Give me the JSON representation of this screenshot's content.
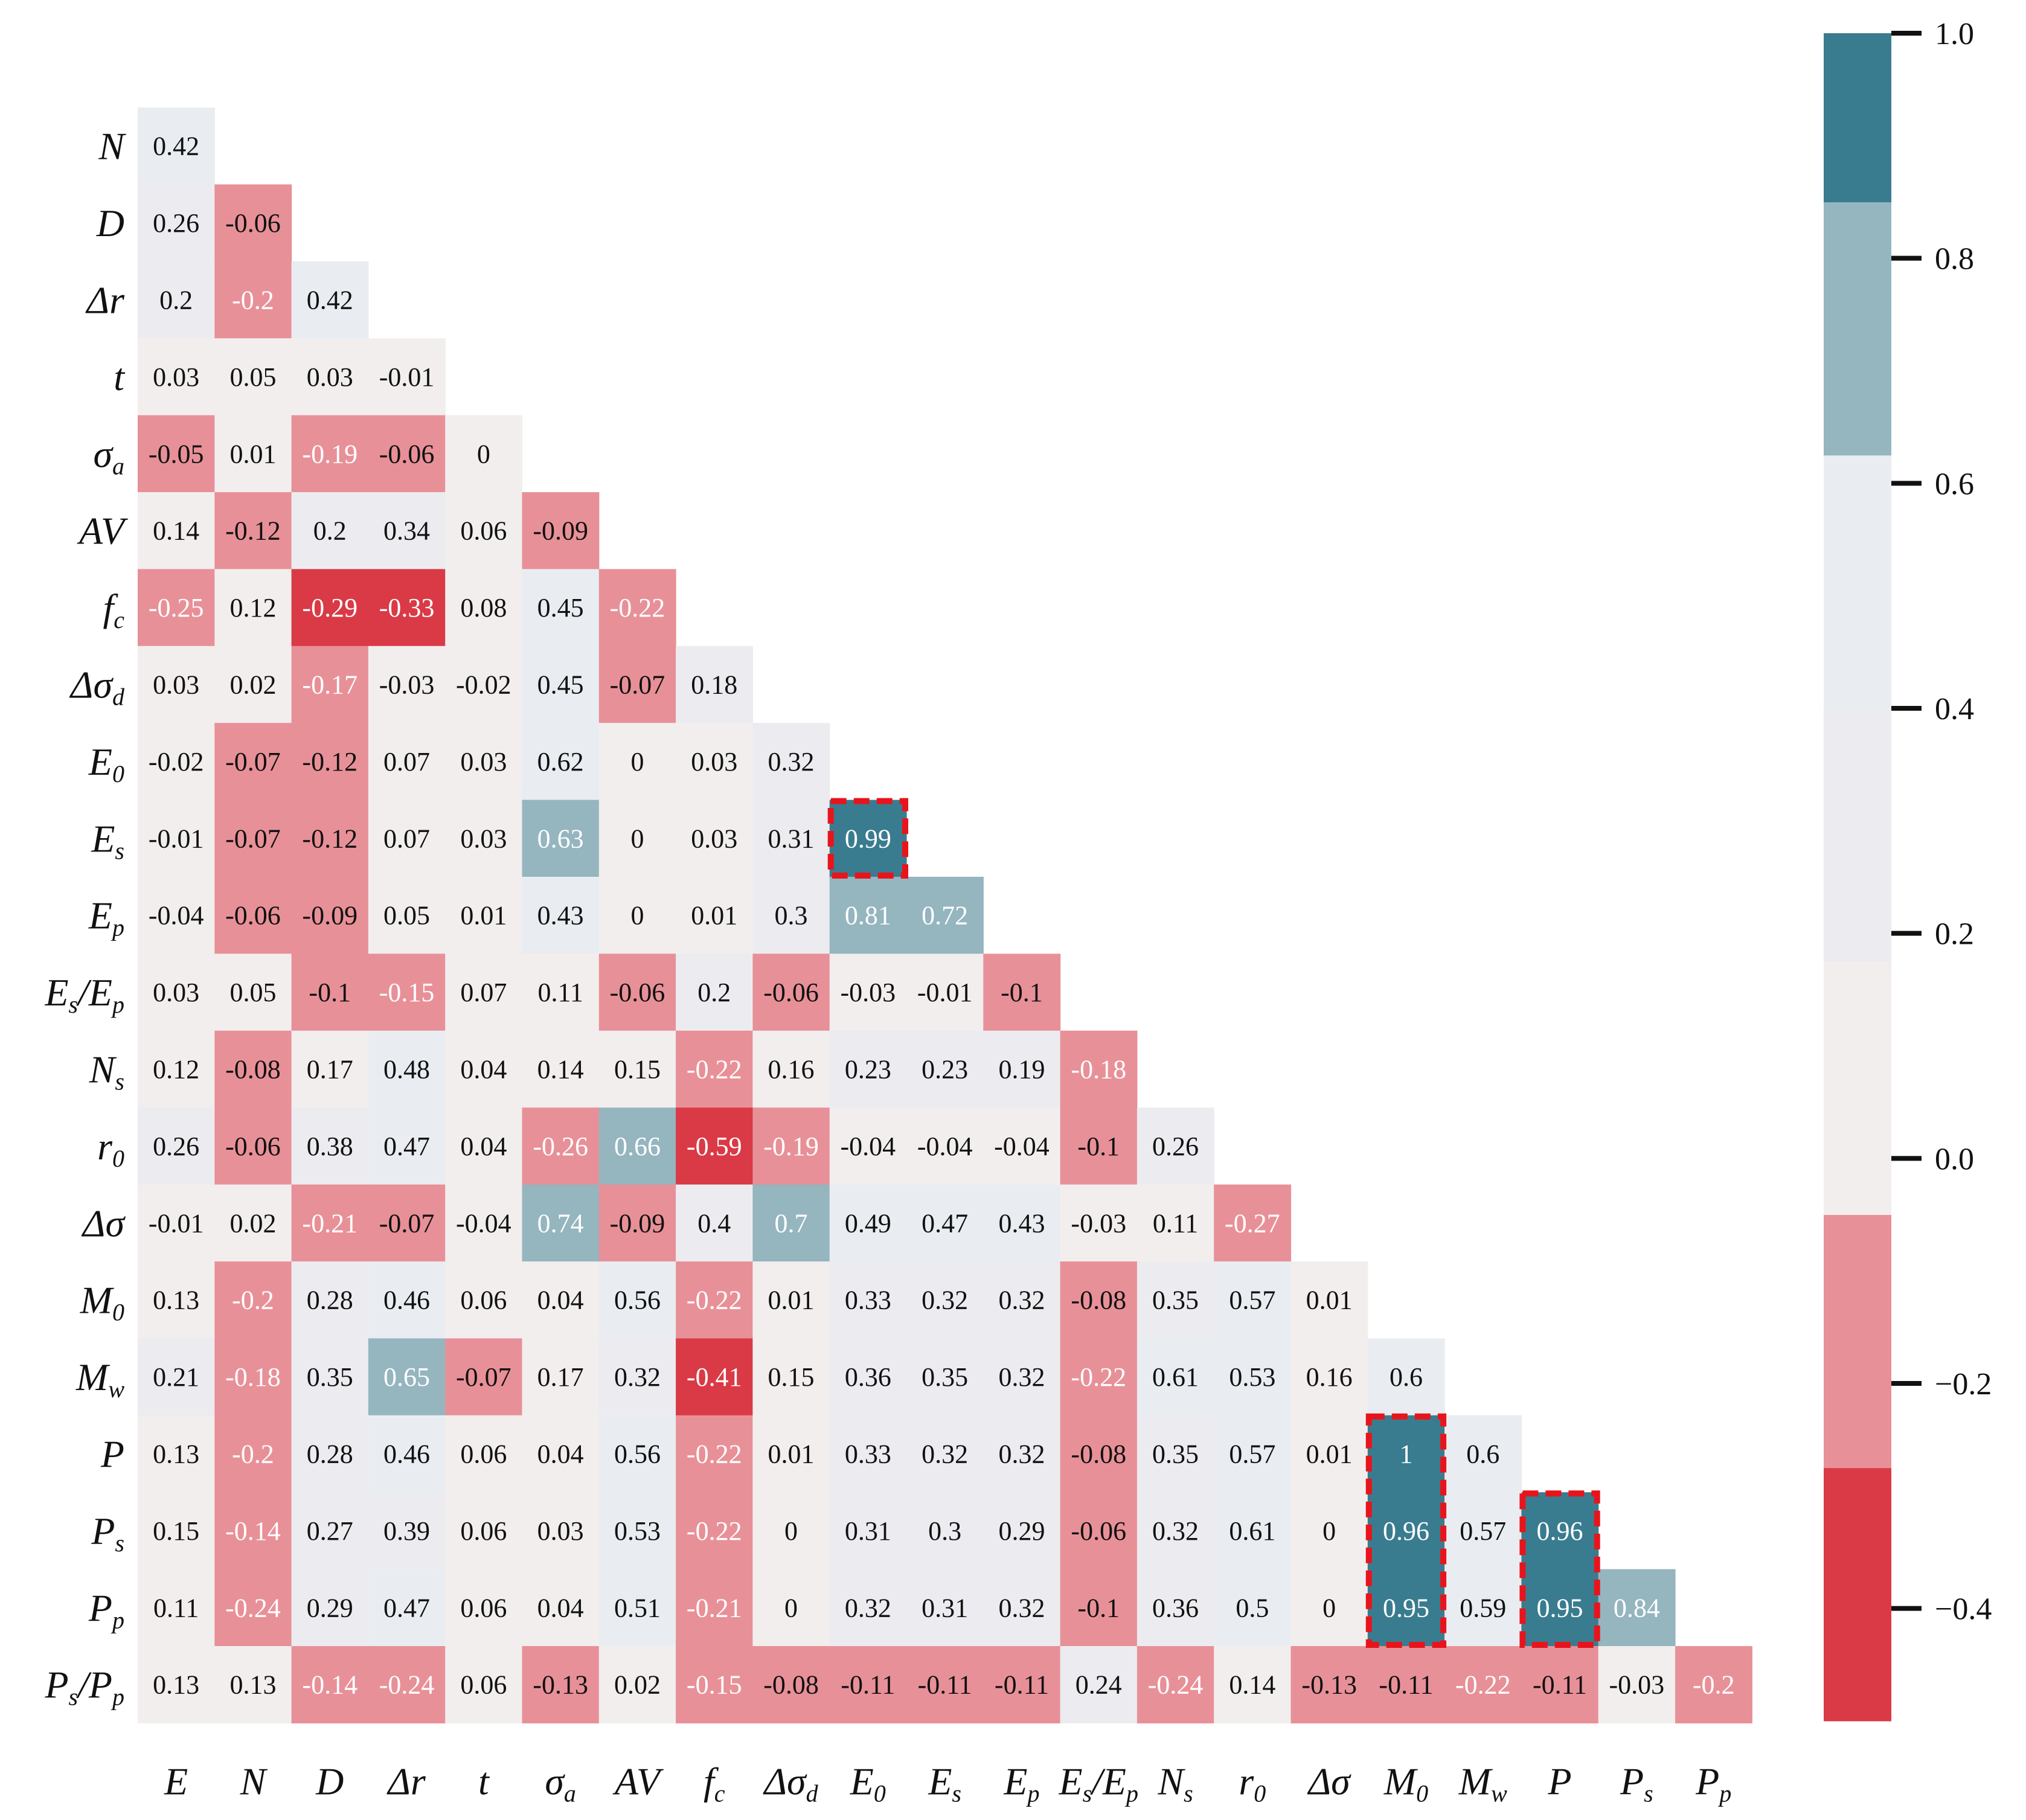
{
  "chart_data": {
    "type": "heatmap",
    "title": "",
    "variables": [
      {
        "base": "E",
        "sub": ""
      },
      {
        "base": "N",
        "sub": ""
      },
      {
        "base": "D",
        "sub": ""
      },
      {
        "base": "Δr",
        "sub": ""
      },
      {
        "base": "t",
        "sub": ""
      },
      {
        "base": "σ",
        "sub": "a"
      },
      {
        "base": "AV",
        "sub": ""
      },
      {
        "base": "f",
        "sub": "c"
      },
      {
        "base": "Δσ",
        "sub": "d"
      },
      {
        "base": "E",
        "sub": "0"
      },
      {
        "base": "E",
        "sub": "s"
      },
      {
        "base": "E",
        "sub": "p"
      },
      {
        "base": "E",
        "sub": "s",
        "base2": "/E",
        "sub2": "p"
      },
      {
        "base": "N",
        "sub": "s"
      },
      {
        "base": "r",
        "sub": "0"
      },
      {
        "base": "Δσ",
        "sub": ""
      },
      {
        "base": "M",
        "sub": "0"
      },
      {
        "base": "M",
        "sub": "w"
      },
      {
        "base": "P",
        "sub": ""
      },
      {
        "base": "P",
        "sub": "s"
      },
      {
        "base": "P",
        "sub": "p"
      },
      {
        "base": "P",
        "sub": "s",
        "base2": "/P",
        "sub2": "p"
      }
    ],
    "rows": [
      [
        "0.42"
      ],
      [
        "0.26",
        "-0.06"
      ],
      [
        "0.2",
        "-0.2",
        "0.42"
      ],
      [
        "0.03",
        "0.05",
        "0.03",
        "-0.01"
      ],
      [
        "-0.05",
        "0.01",
        "-0.19",
        "-0.06",
        "0"
      ],
      [
        "0.14",
        "-0.12",
        "0.2",
        "0.34",
        "0.06",
        "-0.09"
      ],
      [
        "-0.25",
        "0.12",
        "-0.29",
        "-0.33",
        "0.08",
        "0.45",
        "-0.22"
      ],
      [
        "0.03",
        "0.02",
        "-0.17",
        "-0.03",
        "-0.02",
        "0.45",
        "-0.07",
        "0.18"
      ],
      [
        "-0.02",
        "-0.07",
        "-0.12",
        "0.07",
        "0.03",
        "0.62",
        "0",
        "0.03",
        "0.32"
      ],
      [
        "-0.01",
        "-0.07",
        "-0.12",
        "0.07",
        "0.03",
        "0.63",
        "0",
        "0.03",
        "0.31",
        "0.99"
      ],
      [
        "-0.04",
        "-0.06",
        "-0.09",
        "0.05",
        "0.01",
        "0.43",
        "0",
        "0.01",
        "0.3",
        "0.81",
        "0.72"
      ],
      [
        "0.03",
        "0.05",
        "-0.1",
        "-0.15",
        "0.07",
        "0.11",
        "-0.06",
        "0.2",
        "-0.06",
        "-0.03",
        "-0.01",
        "-0.1"
      ],
      [
        "0.12",
        "-0.08",
        "0.17",
        "0.48",
        "0.04",
        "0.14",
        "0.15",
        "-0.22",
        "0.16",
        "0.23",
        "0.23",
        "0.19",
        "-0.18"
      ],
      [
        "0.26",
        "-0.06",
        "0.38",
        "0.47",
        "0.04",
        "-0.26",
        "0.66",
        "-0.59",
        "-0.19",
        "-0.04",
        "-0.04",
        "-0.04",
        "-0.1",
        "0.26"
      ],
      [
        "-0.01",
        "0.02",
        "-0.21",
        "-0.07",
        "-0.04",
        "0.74",
        "-0.09",
        "0.4",
        "0.7",
        "0.49",
        "0.47",
        "0.43",
        "-0.03",
        "0.11",
        "-0.27"
      ],
      [
        "0.13",
        "-0.2",
        "0.28",
        "0.46",
        "0.06",
        "0.04",
        "0.56",
        "-0.22",
        "0.01",
        "0.33",
        "0.32",
        "0.32",
        "-0.08",
        "0.35",
        "0.57",
        "0.01"
      ],
      [
        "0.21",
        "-0.18",
        "0.35",
        "0.65",
        "-0.07",
        "0.17",
        "0.32",
        "-0.41",
        "0.15",
        "0.36",
        "0.35",
        "0.32",
        "-0.22",
        "0.61",
        "0.53",
        "0.16",
        "0.6"
      ],
      [
        "0.13",
        "-0.2",
        "0.28",
        "0.46",
        "0.06",
        "0.04",
        "0.56",
        "-0.22",
        "0.01",
        "0.33",
        "0.32",
        "0.32",
        "-0.08",
        "0.35",
        "0.57",
        "0.01",
        "1",
        "0.6"
      ],
      [
        "0.15",
        "-0.14",
        "0.27",
        "0.39",
        "0.06",
        "0.03",
        "0.53",
        "-0.22",
        "0",
        "0.31",
        "0.3",
        "0.29",
        "-0.06",
        "0.32",
        "0.61",
        "0",
        "0.96",
        "0.57",
        "0.96"
      ],
      [
        "0.11",
        "-0.24",
        "0.29",
        "0.47",
        "0.06",
        "0.04",
        "0.51",
        "-0.21",
        "0",
        "0.32",
        "0.31",
        "0.32",
        "-0.1",
        "0.36",
        "0.5",
        "0",
        "0.95",
        "0.59",
        "0.95",
        "0.84"
      ],
      [
        "0.13",
        "0.13",
        "-0.14",
        "-0.24",
        "0.06",
        "-0.13",
        "0.02",
        "-0.15",
        "-0.08",
        "-0.11",
        "-0.11",
        "-0.11",
        "0.24",
        "-0.24",
        "0.14",
        "-0.13",
        "-0.11",
        "-0.22",
        "-0.11",
        "-0.03",
        "-0.2"
      ]
    ],
    "colorbar": {
      "range": [
        -0.5,
        1.0
      ],
      "ticks": [
        "1.0",
        "0.8",
        "0.6",
        "0.4",
        "0.2",
        "0.0",
        "−0.2",
        "−0.4"
      ],
      "tick_values": [
        1.0,
        0.8,
        0.6,
        0.4,
        0.2,
        0.0,
        -0.2,
        -0.4
      ],
      "bands": [
        {
          "from": -0.5,
          "to": -0.275,
          "color": "#d93a46"
        },
        {
          "from": -0.275,
          "to": -0.05,
          "color": "#e89098"
        },
        {
          "from": -0.05,
          "to": 0.175,
          "color": "#f2eeee"
        },
        {
          "from": 0.175,
          "to": 0.4,
          "color": "#ececf0"
        },
        {
          "from": 0.4,
          "to": 0.625,
          "color": "#e9edf1"
        },
        {
          "from": 0.625,
          "to": 0.85,
          "color": "#95b5bf"
        },
        {
          "from": 0.85,
          "to": 1.0,
          "color": "#3a7c8f"
        }
      ]
    },
    "highlights": [
      {
        "col": 9,
        "row_from": 9,
        "row_to": 9
      },
      {
        "col": 16,
        "row_from": 17,
        "row_to": 19
      },
      {
        "col": 18,
        "row_from": 18,
        "row_to": 19
      }
    ],
    "highlight_color": "#e8141c",
    "light_text_color": "#ffffff",
    "dark_text_color": "#111111"
  }
}
